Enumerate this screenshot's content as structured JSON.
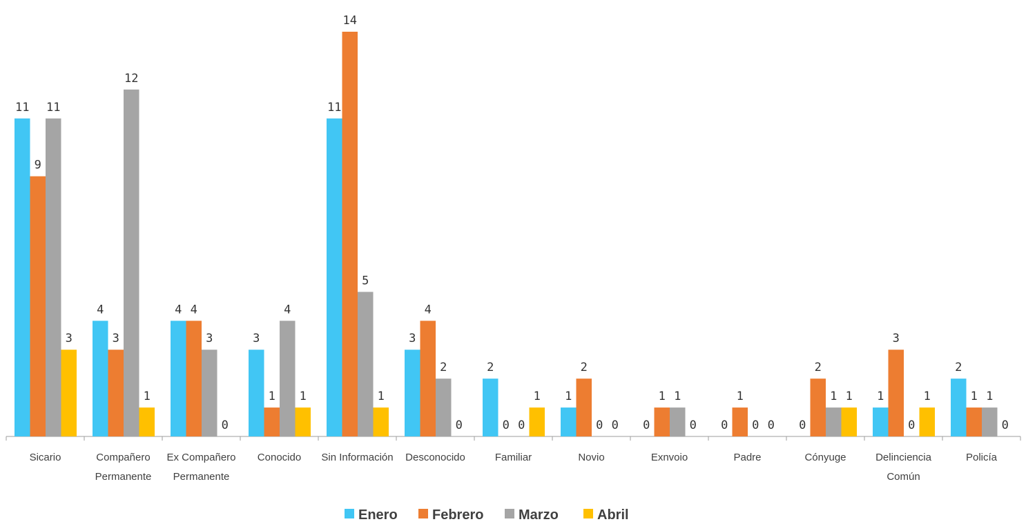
{
  "chart_data": {
    "type": "bar",
    "title": "",
    "xlabel": "",
    "ylabel": "",
    "ylim": [
      0,
      14
    ],
    "grid": false,
    "legend_position": "bottom",
    "categories": [
      [
        "Sicario"
      ],
      [
        "Compañero",
        "Permanente"
      ],
      [
        "Ex Compañero",
        "Permanente"
      ],
      [
        "Conocido"
      ],
      [
        "Sin Información"
      ],
      [
        "Desconocido"
      ],
      [
        "Familiar"
      ],
      [
        "Novio"
      ],
      [
        "Exnvoio"
      ],
      [
        "Padre"
      ],
      [
        "Cónyuge"
      ],
      [
        "Delinciencia",
        "Común"
      ],
      [
        "Policía"
      ]
    ],
    "series": [
      {
        "name": "Enero",
        "color": "#41C6F4",
        "values": [
          11,
          4,
          4,
          3,
          11,
          3,
          2,
          1,
          0,
          0,
          0,
          1,
          2
        ]
      },
      {
        "name": "Febrero",
        "color": "#ED7D31",
        "values": [
          9,
          3,
          4,
          1,
          14,
          4,
          0,
          2,
          1,
          1,
          2,
          3,
          1
        ]
      },
      {
        "name": "Marzo",
        "color": "#A5A5A5",
        "values": [
          11,
          12,
          3,
          4,
          5,
          2,
          0,
          0,
          1,
          0,
          1,
          0,
          1
        ]
      },
      {
        "name": "Abril",
        "color": "#FFC000",
        "values": [
          3,
          1,
          0,
          1,
          1,
          0,
          1,
          0,
          0,
          0,
          1,
          1,
          0
        ]
      }
    ],
    "axis_color": "#9E9E9E"
  }
}
